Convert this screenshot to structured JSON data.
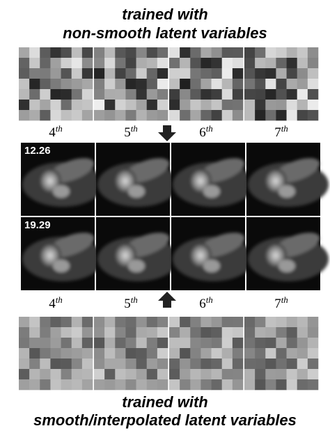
{
  "title_top": [
    "trained with",
    "non-smooth latent variables"
  ],
  "labels_top": [
    {
      "n": "4",
      "sup": "th"
    },
    {
      "n": "5",
      "sup": "th"
    },
    {
      "n": "6",
      "sup": "th"
    },
    {
      "n": "7",
      "sup": "th"
    }
  ],
  "image_rows": [
    {
      "score": "12.26"
    },
    {
      "score": "19.29"
    }
  ],
  "labels_bottom": [
    {
      "n": "4",
      "sup": "th"
    },
    {
      "n": "5",
      "sup": "th"
    },
    {
      "n": "6",
      "sup": "th"
    },
    {
      "n": "7",
      "sup": "th"
    }
  ],
  "title_bottom": [
    "trained with",
    "smooth/interpolated latent variables"
  ]
}
